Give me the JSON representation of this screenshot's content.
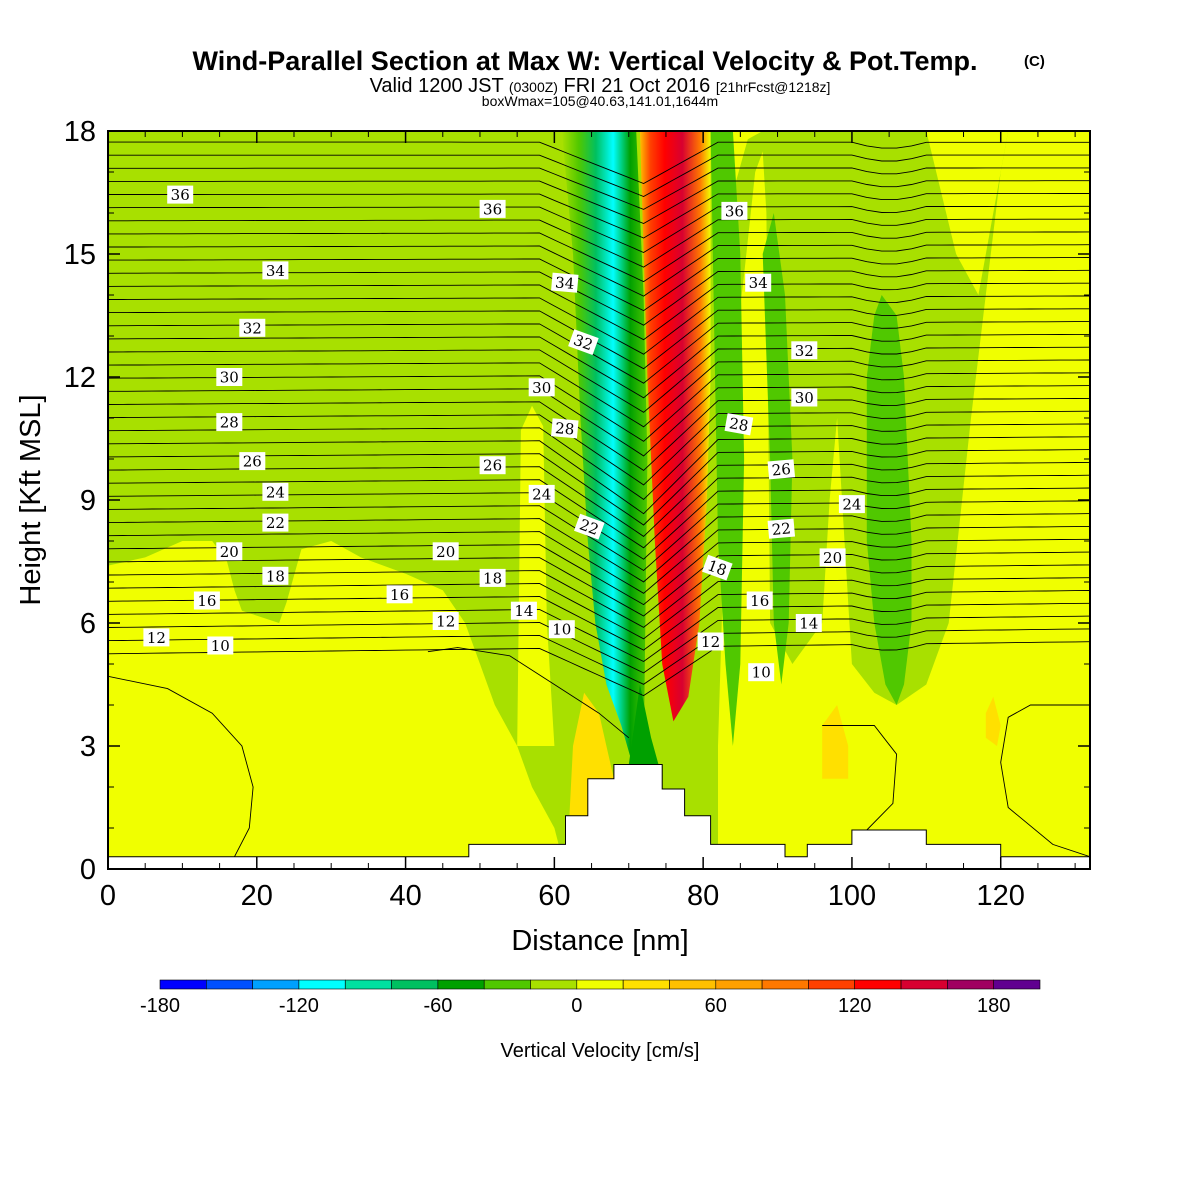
{
  "title": {
    "main": "Wind-Parallel Section at Max W: Vertical Velocity & Pot.Temp.",
    "copyright": "(C)",
    "valid_prefix": "Valid 1200 JST",
    "valid_utc": "(0300Z)",
    "valid_date": "FRI 21 Oct 2016",
    "forecast": "[21hrFcst@1218z]",
    "boxinfo": "boxWmax=105@40.63,141.01,1644m"
  },
  "chart_data": {
    "type": "heatmap",
    "title": "Wind-Parallel Section at Max W: Vertical Velocity & Pot.Temp.",
    "xlabel": "Distance [nm]",
    "ylabel": "Height [Kft MSL]",
    "xlim": [
      0,
      132
    ],
    "ylim": [
      0,
      18
    ],
    "x_ticks": [
      "0",
      "20",
      "40",
      "60",
      "80",
      "100",
      "120"
    ],
    "y_ticks": [
      "0",
      "3",
      "6",
      "9",
      "12",
      "15",
      "18"
    ],
    "colorbar": {
      "label": "Vertical Velocity [cm/s]",
      "min": -180,
      "max": 200,
      "step": 20,
      "tick_labels": [
        "-180",
        "-120",
        "-60",
        "0",
        "60",
        "120",
        "180"
      ],
      "colors": [
        "#0000ff",
        "#0050ff",
        "#00a0ff",
        "#00ffff",
        "#00e0a0",
        "#00c060",
        "#00a000",
        "#50c800",
        "#a8e000",
        "#f0ff00",
        "#ffe000",
        "#ffc000",
        "#ffa000",
        "#ff7800",
        "#ff4000",
        "#ff0000",
        "#d80030",
        "#a00060",
        "#600090"
      ]
    },
    "bands": [
      {
        "name": "downdraft-core",
        "x_range": [
          62,
          71
        ],
        "y_range": [
          1.5,
          18
        ],
        "vertical_velocity_min": -120
      },
      {
        "name": "updraft-core",
        "x_range": [
          72,
          81
        ],
        "y_range": [
          3,
          18
        ],
        "vertical_velocity_max": 140
      },
      {
        "name": "secondary-downdraft",
        "x_range": [
          102,
          110
        ],
        "y_range": [
          3.8,
          14
        ],
        "vertical_velocity_min": -20
      }
    ],
    "terrain": [
      {
        "x": 0,
        "top": 0.3
      },
      {
        "x": 48.5,
        "top": 0.3
      },
      {
        "x": 48.5,
        "top": 0.6
      },
      {
        "x": 61.5,
        "top": 0.6
      },
      {
        "x": 61.5,
        "top": 1.3
      },
      {
        "x": 64.5,
        "top": 1.3
      },
      {
        "x": 64.5,
        "top": 2.2
      },
      {
        "x": 68,
        "top": 2.2
      },
      {
        "x": 68,
        "top": 2.55
      },
      {
        "x": 74.5,
        "top": 2.55
      },
      {
        "x": 74.5,
        "top": 1.95
      },
      {
        "x": 77.5,
        "top": 1.95
      },
      {
        "x": 77.5,
        "top": 1.3
      },
      {
        "x": 81,
        "top": 1.3
      },
      {
        "x": 81,
        "top": 0.6
      },
      {
        "x": 91,
        "top": 0.6
      },
      {
        "x": 91,
        "top": 0.3
      },
      {
        "x": 94,
        "top": 0.3
      },
      {
        "x": 94,
        "top": 0.6
      },
      {
        "x": 100,
        "top": 0.6
      },
      {
        "x": 100,
        "top": 0.95
      },
      {
        "x": 110,
        "top": 0.95
      },
      {
        "x": 110,
        "top": 0.6
      },
      {
        "x": 120,
        "top": 0.6
      },
      {
        "x": 120,
        "top": 0.3
      },
      {
        "x": 132,
        "top": 0.3
      }
    ],
    "theta_contour_labels": [
      {
        "text": "36",
        "x": 9.7,
        "y": 16.45,
        "angle": 0
      },
      {
        "text": "36",
        "x": 51.7,
        "y": 16.1,
        "angle": 0
      },
      {
        "text": "36",
        "x": 84.2,
        "y": 16.05,
        "angle": 0
      },
      {
        "text": "34",
        "x": 22.5,
        "y": 14.6,
        "angle": 0
      },
      {
        "text": "34",
        "x": 61.4,
        "y": 14.3,
        "angle": 5
      },
      {
        "text": "34",
        "x": 87.4,
        "y": 14.3,
        "angle": 0
      },
      {
        "text": "32",
        "x": 19.4,
        "y": 13.2,
        "angle": 0
      },
      {
        "text": "32",
        "x": 63.9,
        "y": 12.85,
        "angle": 20
      },
      {
        "text": "32",
        "x": 93.6,
        "y": 12.65,
        "angle": 0
      },
      {
        "text": "30",
        "x": 16.3,
        "y": 12.0,
        "angle": 0
      },
      {
        "text": "30",
        "x": 58.3,
        "y": 11.75,
        "angle": 0
      },
      {
        "text": "30",
        "x": 93.6,
        "y": 11.5,
        "angle": 0
      },
      {
        "text": "28",
        "x": 16.3,
        "y": 10.9,
        "angle": 0
      },
      {
        "text": "28",
        "x": 61.4,
        "y": 10.75,
        "angle": 5
      },
      {
        "text": "28",
        "x": 84.8,
        "y": 10.85,
        "angle": 10
      },
      {
        "text": "26",
        "x": 19.4,
        "y": 9.95,
        "angle": 0
      },
      {
        "text": "26",
        "x": 51.7,
        "y": 9.85,
        "angle": 0
      },
      {
        "text": "26",
        "x": 90.5,
        "y": 9.75,
        "angle": -5
      },
      {
        "text": "24",
        "x": 22.5,
        "y": 9.2,
        "angle": 0
      },
      {
        "text": "24",
        "x": 58.3,
        "y": 9.15,
        "angle": 0
      },
      {
        "text": "24",
        "x": 100.0,
        "y": 8.9,
        "angle": 0
      },
      {
        "text": "22",
        "x": 22.5,
        "y": 8.45,
        "angle": 0
      },
      {
        "text": "22",
        "x": 64.7,
        "y": 8.35,
        "angle": 20
      },
      {
        "text": "22",
        "x": 90.5,
        "y": 8.3,
        "angle": -5
      },
      {
        "text": "20",
        "x": 16.3,
        "y": 7.75,
        "angle": 0
      },
      {
        "text": "20",
        "x": 45.4,
        "y": 7.75,
        "angle": 0
      },
      {
        "text": "20",
        "x": 97.4,
        "y": 7.6,
        "angle": 0
      },
      {
        "text": "18",
        "x": 22.5,
        "y": 7.15,
        "angle": 0
      },
      {
        "text": "18",
        "x": 51.7,
        "y": 7.1,
        "angle": 0
      },
      {
        "text": "18",
        "x": 81.9,
        "y": 7.35,
        "angle": 20
      },
      {
        "text": "16",
        "x": 13.3,
        "y": 6.55,
        "angle": 0
      },
      {
        "text": "16",
        "x": 39.2,
        "y": 6.7,
        "angle": 0
      },
      {
        "text": "16",
        "x": 87.6,
        "y": 6.55,
        "angle": 0
      },
      {
        "text": "14",
        "x": 55.9,
        "y": 6.3,
        "angle": 0
      },
      {
        "text": "14",
        "x": 94.2,
        "y": 6.0,
        "angle": 0
      },
      {
        "text": "12",
        "x": 6.5,
        "y": 5.65,
        "angle": 0
      },
      {
        "text": "12",
        "x": 45.4,
        "y": 6.05,
        "angle": 0
      },
      {
        "text": "12",
        "x": 81.0,
        "y": 5.55,
        "angle": 0
      },
      {
        "text": "10",
        "x": 15.1,
        "y": 5.45,
        "angle": 0
      },
      {
        "text": "10",
        "x": 61.0,
        "y": 5.85,
        "angle": 0
      },
      {
        "text": "10",
        "x": 87.8,
        "y": 4.8,
        "angle": 0
      }
    ]
  }
}
